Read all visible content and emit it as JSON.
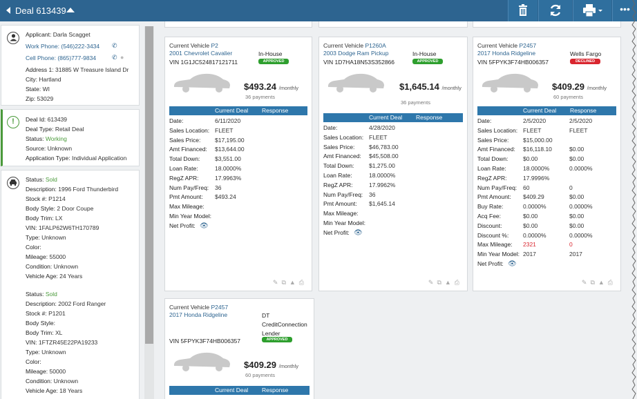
{
  "header": {
    "title": "Deal 613439"
  },
  "applicant": {
    "name_label": "Applicant:",
    "name": "Darla Scagget",
    "work_label": "Work Phone:",
    "work": "(546)222-3434",
    "cell_label": "Cell Phone:",
    "cell": "(865)777-9834",
    "addr_label": "Address 1:",
    "addr": "31885 W Treasure Island Dr",
    "city_label": "City:",
    "city": "Hartland",
    "state_label": "State:",
    "state": "WI",
    "zip_label": "Zip:",
    "zip": "53029"
  },
  "deal_info": {
    "id_label": "Deal Id:",
    "id": "613439",
    "type_label": "Deal Type:",
    "type": "Retail Deal",
    "status_label": "Status:",
    "status": "Working",
    "source_label": "Source:",
    "source": "Unknown",
    "app_label": "Application Type:",
    "app": "Individual Application"
  },
  "vehicles": [
    {
      "status": "Sold",
      "desc": "1996 Ford Thunderbird",
      "stock": "P1214",
      "style": "2 Door Coupe",
      "trim": "LX",
      "vin": "1FALP62W6TH170789",
      "type": "Unknown",
      "color": "",
      "mileage": "55000",
      "condition": "Unknown",
      "age": "24 Years"
    },
    {
      "status": "Sold",
      "desc": "2002 Ford Ranger",
      "stock": "P1201",
      "style": "",
      "trim": "XL",
      "vin": "1FTZR45E22PA19233",
      "type": "Unknown",
      "color": "",
      "mileage": "50000",
      "condition": "Unknown",
      "age": "18 Years"
    }
  ],
  "veh_labels": {
    "status": "Status:",
    "desc": "Description:",
    "stock": "Stock #:",
    "style": "Body Style:",
    "trim": "Body Trim:",
    "vin": "VIN:",
    "type": "Type:",
    "color": "Color:",
    "mileage": "Mileage:",
    "condition": "Condition:",
    "age": "Vehicle Age:"
  },
  "deal_labels": {
    "current_vehicle": "Current Vehicle",
    "per_month": "/monthly",
    "current_deal": "Current Deal",
    "response": "Response"
  },
  "deals": [
    {
      "stock": "P2",
      "vehicle": "2001 Chevrolet Cavalier",
      "vin": "VIN 1G1JC524817121711",
      "lender": "In-House",
      "badge": "APPROVED",
      "payment": "$493.24",
      "payments": "36 payments",
      "rows": [
        [
          "Date:",
          "6/11/2020",
          ""
        ],
        [
          "Sales Location:",
          "FLEET",
          ""
        ],
        [
          "Sales Price:",
          "$17,195.00",
          ""
        ],
        [
          "Amt Financed:",
          "$13,644.00",
          ""
        ],
        [
          "Total Down:",
          "$3,551.00",
          ""
        ],
        [
          "Loan Rate:",
          "18.0000%",
          ""
        ],
        [
          "RegZ APR:",
          "17.9963%",
          ""
        ],
        [
          "Num Pay/Freq:",
          "36",
          ""
        ],
        [
          "Pmt Amount:",
          "$493.24",
          ""
        ],
        [
          "Max Mileage:",
          "",
          ""
        ],
        [
          "Min Year Model:",
          "",
          ""
        ],
        [
          "Net Profit:",
          "",
          ""
        ]
      ]
    },
    {
      "stock": "P1260A",
      "vehicle": "2003 Dodge Ram Pickup",
      "vin": "VIN 1D7HA18N53S352866",
      "lender": "In-House",
      "badge": "APPROVED",
      "payment": "$1,645.14",
      "payments": "36 payments",
      "rows": [
        [
          "Date:",
          "4/28/2020",
          ""
        ],
        [
          "Sales Location:",
          "FLEET",
          ""
        ],
        [
          "Sales Price:",
          "$46,783.00",
          ""
        ],
        [
          "Amt Financed:",
          "$45,508.00",
          ""
        ],
        [
          "Total Down:",
          "$1,275.00",
          ""
        ],
        [
          "Loan Rate:",
          "18.0000%",
          ""
        ],
        [
          "RegZ APR:",
          "17.9962%",
          ""
        ],
        [
          "Num Pay/Freq:",
          "36",
          ""
        ],
        [
          "Pmt Amount:",
          "$1,645.14",
          ""
        ],
        [
          "Max Mileage:",
          "",
          ""
        ],
        [
          "Min Year Model:",
          "",
          ""
        ],
        [
          "Net Profit:",
          "",
          ""
        ]
      ]
    },
    {
      "stock": "P2457",
      "vehicle": "2017 Honda Ridgeline",
      "vin": "VIN 5FPYK3F74HB006357",
      "lender": "Wells Fargo",
      "badge": "DECLINED",
      "payment": "$409.29",
      "payments": "60 payments",
      "rows": [
        [
          "Date:",
          "2/5/2020",
          "2/5/2020"
        ],
        [
          "Sales Location:",
          "FLEET",
          "FLEET"
        ],
        [
          "Sales Price:",
          "$15,000.00",
          ""
        ],
        [
          "Amt Financed:",
          "$16,118.10",
          "$0.00"
        ],
        [
          "Total Down:",
          "$0.00",
          "$0.00"
        ],
        [
          "Loan Rate:",
          "18.0000%",
          "0.0000%"
        ],
        [
          "RegZ APR:",
          "17.9996%",
          ""
        ],
        [
          "Num Pay/Freq:",
          "60",
          "0"
        ],
        [
          "Pmt Amount:",
          "$409.29",
          "$0.00"
        ],
        [
          "Buy Rate:",
          "0.0000%",
          "0.0000%"
        ],
        [
          "Acq Fee:",
          "$0.00",
          "$0.00"
        ],
        [
          "Discount:",
          "$0.00",
          "$0.00"
        ],
        [
          "Discount %:",
          "0.0000%",
          "0.0000%"
        ],
        [
          "Max Mileage:",
          "2321",
          "0"
        ],
        [
          "Min Year Model:",
          "2017",
          "2017"
        ],
        [
          "Net Profit:",
          "",
          ""
        ]
      ]
    },
    {
      "stock": "P2457",
      "vehicle": "2017 Honda Ridgeline",
      "vin": "VIN 5FPYK3F74HB006357",
      "lender": "DT CreditConnection Lender",
      "badge": "APPROVED",
      "payment": "$409.29",
      "payments": "60 payments",
      "rows": []
    }
  ],
  "colors": {
    "header_bg": "#2d6490",
    "table_header": "#2e77ab",
    "approved": "#2e9f2e",
    "declined": "#d9262f",
    "link": "#2d6490"
  }
}
